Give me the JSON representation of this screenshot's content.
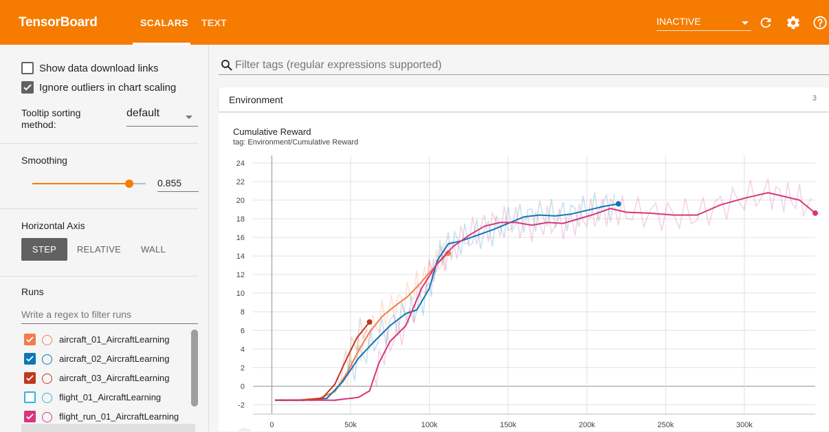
{
  "header": {
    "brand": "TensorBoard",
    "tabs": [
      {
        "label": "SCALARS"
      },
      {
        "label": "TEXT"
      }
    ],
    "status_select": "INACTIVE",
    "colors": {
      "bar": "#f57c00"
    }
  },
  "sidebar": {
    "show_download_label": "Show data download links",
    "ignore_outliers_label": "Ignore outliers in chart scaling",
    "tooltip_label": "Tooltip sorting method:",
    "tooltip_value": "default",
    "smoothing_label": "Smoothing",
    "smoothing_value": "0.855",
    "smoothing_fraction": 0.855,
    "horizontal_axis_label": "Horizontal Axis",
    "axis_buttons": [
      {
        "label": "STEP"
      },
      {
        "label": "RELATIVE"
      },
      {
        "label": "WALL"
      }
    ],
    "runs_label": "Runs",
    "runs_filter_placeholder": "Write a regex to filter runs",
    "runs": [
      {
        "name": "aircraft_01_AircraftLearning",
        "color": "#f47b4c",
        "checked": true
      },
      {
        "name": "aircraft_02_AircraftLearning",
        "color": "#0b77b8",
        "checked": true
      },
      {
        "name": "aircraft_03_AircraftLearning",
        "color": "#c0391f",
        "checked": true
      },
      {
        "name": "flight_01_AircraftLearning",
        "color": "#34b0d6",
        "checked": false
      },
      {
        "name": "flight_run_01_AircraftLearning",
        "color": "#d6367a",
        "checked": true
      }
    ]
  },
  "main": {
    "filter_placeholder": "Filter tags (regular expressions supported)",
    "section_title": "Environment",
    "section_count": "3",
    "chart_title": "Cumulative Reward",
    "chart_tag": "tag: Environment/Cumulative Reward"
  },
  "chart_data": {
    "type": "line",
    "title": "Cumulative Reward",
    "xlabel": "",
    "ylabel": "",
    "xlim": [
      -12000,
      345000
    ],
    "ylim": [
      -3,
      24.8
    ],
    "x_ticks": [
      0,
      50000,
      100000,
      150000,
      200000,
      250000,
      300000
    ],
    "x_tick_labels": [
      "0",
      "50k",
      "100k",
      "150k",
      "200k",
      "250k",
      "300k"
    ],
    "y_ticks": [
      -2,
      0,
      2,
      4,
      6,
      8,
      10,
      12,
      14,
      16,
      18,
      20,
      22,
      24
    ],
    "y_tick_labels": [
      "-2",
      "0",
      "2",
      "4",
      "6",
      "8",
      "10",
      "12",
      "14",
      "16",
      "18",
      "20",
      "22",
      "24"
    ],
    "series": [
      {
        "name": "aircraft_01_AircraftLearning",
        "color": "#f47b4c",
        "x": [
          2000,
          15000,
          30000,
          40000,
          48000,
          55000,
          62000,
          70000,
          78000,
          86000,
          94000,
          100000,
          106000,
          112000
        ],
        "y": [
          -1.5,
          -1.5,
          -1.3,
          -0.6,
          1.5,
          3.8,
          5.8,
          7.5,
          8.6,
          9.6,
          11,
          12.2,
          13.3,
          14.3
        ]
      },
      {
        "name": "aircraft_02_AircraftLearning",
        "color": "#0b77b8",
        "x": [
          2000,
          20000,
          35000,
          45000,
          55000,
          65000,
          75000,
          85000,
          92000,
          100000,
          105000,
          112000,
          120000,
          130000,
          140000,
          150000,
          160000,
          170000,
          180000,
          190000,
          200000,
          210000,
          220000
        ],
        "y": [
          -1.5,
          -1.5,
          -1.3,
          0.5,
          3,
          4.8,
          6.5,
          7.8,
          8.2,
          10.5,
          13.5,
          15.3,
          15.6,
          16.2,
          16.8,
          17.5,
          18.2,
          18.4,
          18.3,
          18.5,
          18.9,
          19.3,
          19.6
        ]
      },
      {
        "name": "aircraft_03_AircraftLearning",
        "color": "#c0391f",
        "x": [
          2000,
          20000,
          32000,
          40000,
          47000,
          54000,
          62000
        ],
        "y": [
          -1.5,
          -1.5,
          -1.3,
          0.2,
          2.8,
          5.2,
          6.9
        ]
      },
      {
        "name": "flight_run_01_AircraftLearning",
        "color": "#d6367a",
        "x": [
          2000,
          20000,
          40000,
          55000,
          62000,
          68000,
          75000,
          85000,
          95000,
          105000,
          115000,
          125000,
          135000,
          145000,
          155000,
          165000,
          175000,
          185000,
          195000,
          205000,
          215000,
          225000,
          240000,
          255000,
          270000,
          285000,
          300000,
          315000,
          325000,
          335000,
          345000
        ],
        "y": [
          -1.5,
          -1.5,
          -1.5,
          -1.2,
          -0.5,
          2.5,
          4.8,
          6.5,
          10.5,
          13.2,
          15.0,
          16.2,
          17.2,
          17.6,
          17.6,
          17.3,
          17.6,
          17.5,
          18.0,
          18.5,
          19.1,
          18.7,
          18.6,
          18.4,
          18.4,
          19.5,
          20.2,
          20.8,
          20.4,
          20.0,
          18.6
        ]
      }
    ]
  }
}
